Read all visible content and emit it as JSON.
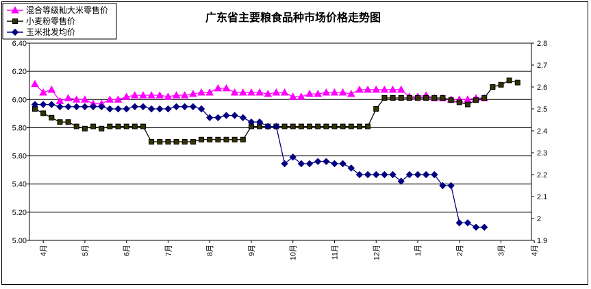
{
  "chart_data": {
    "type": "line",
    "title": "广东省主要粮食品种市场价格走势图",
    "x_tick_labels": [
      "4月",
      "5月",
      "6月",
      "7月",
      "8月",
      "9月",
      "10月",
      "11月",
      "12月",
      "1月",
      "2月",
      "3月",
      "4月"
    ],
    "x_tick_index": [
      1,
      6,
      11,
      16,
      21,
      26,
      31,
      36,
      41,
      46,
      51,
      56,
      60
    ],
    "left_axis": {
      "ylim": [
        5.0,
        6.4
      ],
      "tick_labels": [
        "5.00",
        "5.20",
        "5.40",
        "5.60",
        "5.80",
        "6.00",
        "6.20",
        "6.40"
      ]
    },
    "right_axis": {
      "ylim": [
        1.9,
        2.8
      ],
      "tick_labels": [
        "1.9",
        "2",
        "2.1",
        "2.2",
        "2.3",
        "2.4",
        "2.5",
        "2.6",
        "2.7",
        "2.8"
      ]
    },
    "grid": true,
    "legend_position": "top-left",
    "series": [
      {
        "name": "混合等级籼大米零售价",
        "axis": "left",
        "color": "#ff00ff",
        "marker": "triangle",
        "values": [
          6.11,
          6.05,
          6.07,
          5.99,
          6.01,
          6.0,
          6.0,
          5.97,
          5.97,
          6.0,
          6.0,
          6.02,
          6.03,
          6.03,
          6.03,
          6.03,
          6.02,
          6.03,
          6.03,
          6.04,
          6.05,
          6.05,
          6.08,
          6.08,
          6.05,
          6.05,
          6.05,
          6.05,
          6.04,
          6.05,
          6.05,
          6.02,
          6.02,
          6.04,
          6.04,
          6.05,
          6.05,
          6.05,
          6.04,
          6.07,
          6.07,
          6.07,
          6.07,
          6.07,
          6.07,
          6.02,
          6.02,
          6.03,
          6.01,
          6.01,
          6.0,
          6.0,
          6.0,
          6.01,
          6.01
        ]
      },
      {
        "name": "小麦粉零售价",
        "axis": "right",
        "color": "#000000",
        "marker": "square",
        "fill": "#333300",
        "values": [
          2.5,
          2.48,
          2.46,
          2.44,
          2.44,
          2.42,
          2.41,
          2.42,
          2.41,
          2.42,
          2.42,
          2.42,
          2.42,
          2.42,
          2.35,
          2.35,
          2.35,
          2.35,
          2.35,
          2.35,
          2.36,
          2.36,
          2.36,
          2.36,
          2.36,
          2.36,
          2.42,
          2.42,
          2.42,
          2.42,
          2.42,
          2.42,
          2.42,
          2.42,
          2.42,
          2.42,
          2.42,
          2.42,
          2.42,
          2.42,
          2.42,
          2.5,
          2.55,
          2.55,
          2.55,
          2.55,
          2.55,
          2.55,
          2.55,
          2.55,
          2.54,
          2.53,
          2.52,
          2.54,
          2.55,
          2.6,
          2.61,
          2.63,
          2.62
        ]
      },
      {
        "name": "玉米批发均价",
        "axis": "right",
        "color": "#000080",
        "marker": "diamond",
        "values": [
          2.52,
          2.52,
          2.52,
          2.51,
          2.51,
          2.51,
          2.51,
          2.51,
          2.51,
          2.5,
          2.5,
          2.5,
          2.51,
          2.51,
          2.5,
          2.5,
          2.5,
          2.51,
          2.51,
          2.51,
          2.5,
          2.46,
          2.46,
          2.47,
          2.47,
          2.46,
          2.44,
          2.44,
          2.42,
          2.42,
          2.25,
          2.28,
          2.25,
          2.25,
          2.26,
          2.26,
          2.25,
          2.25,
          2.23,
          2.2,
          2.2,
          2.2,
          2.2,
          2.2,
          2.17,
          2.2,
          2.2,
          2.2,
          2.2,
          2.15,
          2.15,
          1.98,
          1.98,
          1.96,
          1.96
        ]
      }
    ]
  }
}
